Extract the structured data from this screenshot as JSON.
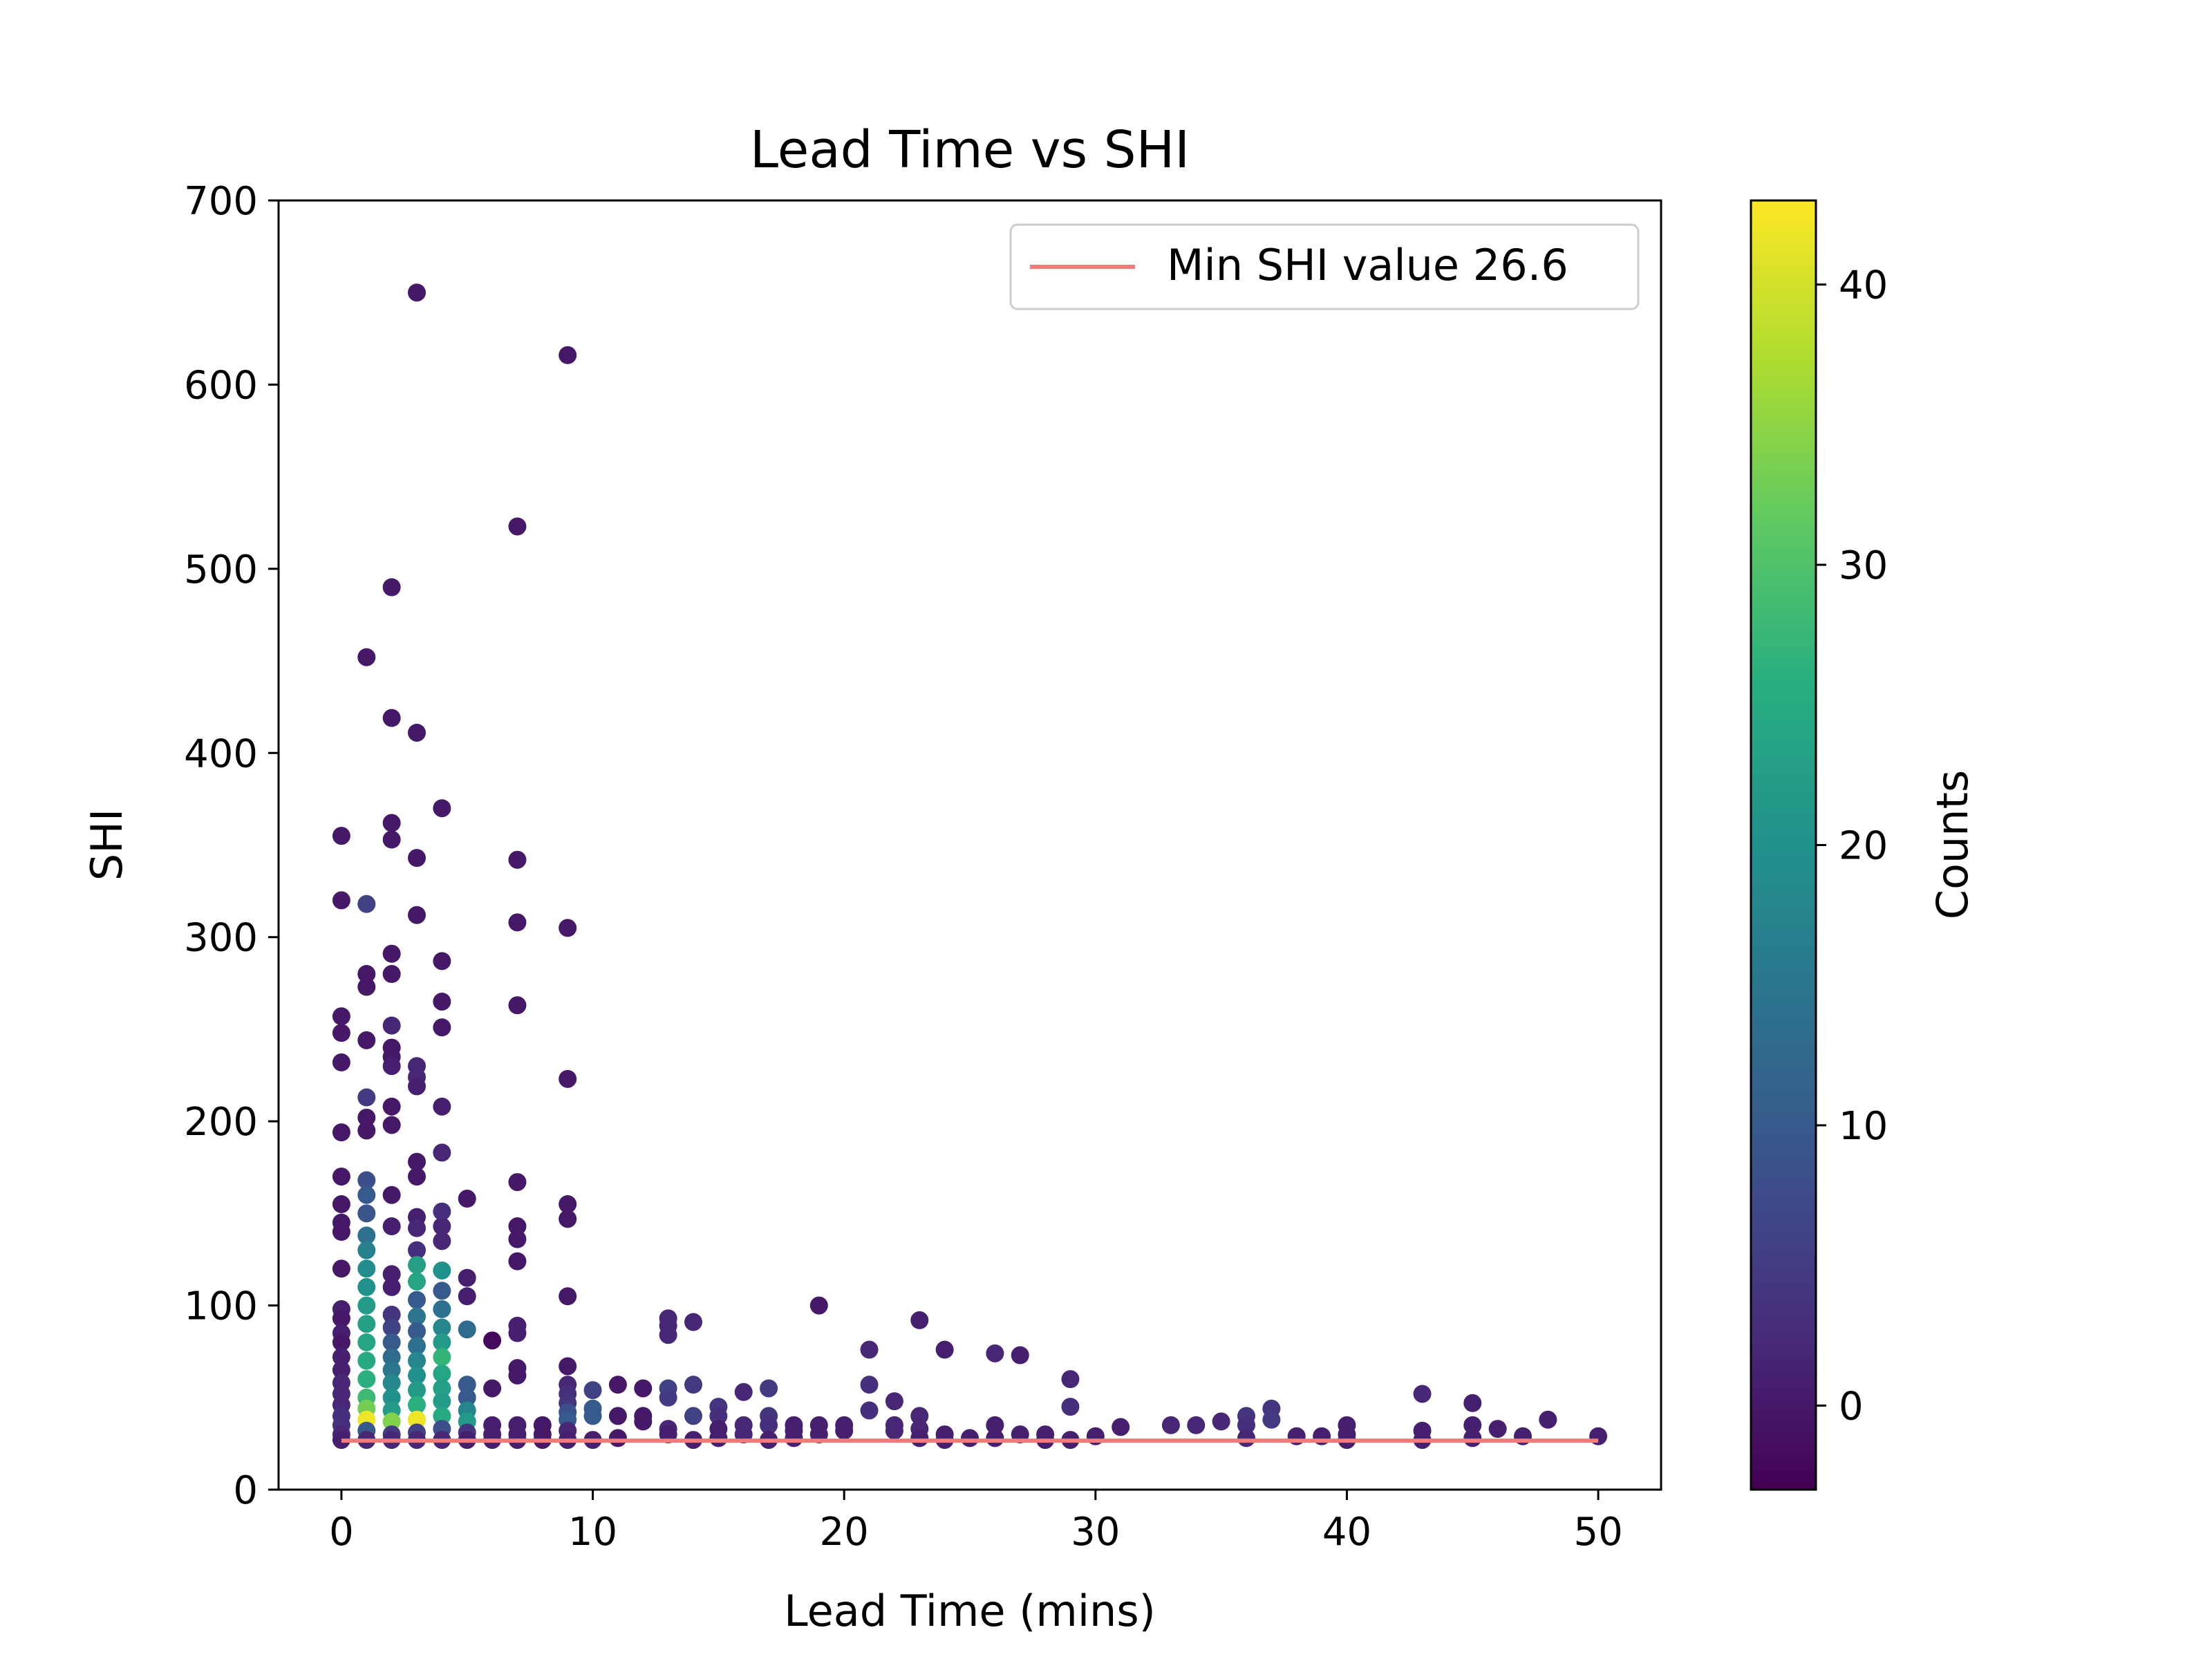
{
  "chart_data": {
    "type": "scatter",
    "title": "Lead Time vs SHI",
    "xlabel": "Lead Time (mins)",
    "ylabel": "SHI",
    "xlim": [
      -2.5,
      52.5
    ],
    "ylim": [
      0,
      700
    ],
    "xticks": [
      0,
      10,
      20,
      30,
      40,
      50
    ],
    "yticks": [
      0,
      100,
      200,
      300,
      400,
      500,
      600,
      700
    ],
    "grid": false,
    "legend": {
      "placement": "upper-right",
      "entries": [
        {
          "label": "Min SHI value 26.6",
          "color": "#f07b7b"
        }
      ]
    },
    "reference_line": {
      "y": 26.6,
      "x_range": [
        0,
        50
      ],
      "color": "#f07b7b"
    },
    "colorbar": {
      "label": "Counts",
      "range": [
        -3,
        43
      ],
      "ticks": [
        0,
        10,
        20,
        30,
        40
      ],
      "colormap": "viridis"
    },
    "points": [
      {
        "x": 0,
        "y": 355,
        "c": 0
      },
      {
        "x": 0,
        "y": 320,
        "c": 0
      },
      {
        "x": 0,
        "y": 257,
        "c": 0
      },
      {
        "x": 0,
        "y": 248,
        "c": 0
      },
      {
        "x": 0,
        "y": 232,
        "c": 0
      },
      {
        "x": 0,
        "y": 194,
        "c": 0
      },
      {
        "x": 0,
        "y": 170,
        "c": 0
      },
      {
        "x": 0,
        "y": 155,
        "c": 0
      },
      {
        "x": 0,
        "y": 145,
        "c": 0
      },
      {
        "x": 0,
        "y": 140,
        "c": 0
      },
      {
        "x": 0,
        "y": 120,
        "c": 0
      },
      {
        "x": 0,
        "y": 98,
        "c": 1
      },
      {
        "x": 0,
        "y": 93,
        "c": 0
      },
      {
        "x": 0,
        "y": 85,
        "c": 1
      },
      {
        "x": 0,
        "y": 80,
        "c": 0
      },
      {
        "x": 0,
        "y": 72,
        "c": 1
      },
      {
        "x": 0,
        "y": 65,
        "c": 1
      },
      {
        "x": 0,
        "y": 58,
        "c": 2
      },
      {
        "x": 0,
        "y": 52,
        "c": 2
      },
      {
        "x": 0,
        "y": 46,
        "c": 2
      },
      {
        "x": 0,
        "y": 40,
        "c": 3
      },
      {
        "x": 0,
        "y": 35,
        "c": 3
      },
      {
        "x": 0,
        "y": 30,
        "c": 2
      },
      {
        "x": 0,
        "y": 27,
        "c": 1
      },
      {
        "x": 1,
        "y": 452,
        "c": 0
      },
      {
        "x": 1,
        "y": 318,
        "c": 6
      },
      {
        "x": 1,
        "y": 280,
        "c": 0
      },
      {
        "x": 1,
        "y": 273,
        "c": 0
      },
      {
        "x": 1,
        "y": 244,
        "c": 0
      },
      {
        "x": 1,
        "y": 213,
        "c": 5
      },
      {
        "x": 1,
        "y": 202,
        "c": 0
      },
      {
        "x": 1,
        "y": 195,
        "c": 0
      },
      {
        "x": 1,
        "y": 168,
        "c": 8
      },
      {
        "x": 1,
        "y": 160,
        "c": 10
      },
      {
        "x": 1,
        "y": 150,
        "c": 9
      },
      {
        "x": 1,
        "y": 138,
        "c": 14
      },
      {
        "x": 1,
        "y": 130,
        "c": 17
      },
      {
        "x": 1,
        "y": 120,
        "c": 19
      },
      {
        "x": 1,
        "y": 110,
        "c": 20
      },
      {
        "x": 1,
        "y": 100,
        "c": 22
      },
      {
        "x": 1,
        "y": 90,
        "c": 23
      },
      {
        "x": 1,
        "y": 80,
        "c": 24
      },
      {
        "x": 1,
        "y": 70,
        "c": 25
      },
      {
        "x": 1,
        "y": 60,
        "c": 26
      },
      {
        "x": 1,
        "y": 50,
        "c": 28
      },
      {
        "x": 1,
        "y": 44,
        "c": 33
      },
      {
        "x": 1,
        "y": 38,
        "c": 42
      },
      {
        "x": 1,
        "y": 32,
        "c": 10
      },
      {
        "x": 1,
        "y": 27,
        "c": 2
      },
      {
        "x": 2,
        "y": 490,
        "c": 0
      },
      {
        "x": 2,
        "y": 419,
        "c": 0
      },
      {
        "x": 2,
        "y": 362,
        "c": 0
      },
      {
        "x": 2,
        "y": 353,
        "c": 0
      },
      {
        "x": 2,
        "y": 291,
        "c": 0
      },
      {
        "x": 2,
        "y": 280,
        "c": 0
      },
      {
        "x": 2,
        "y": 252,
        "c": 2
      },
      {
        "x": 2,
        "y": 240,
        "c": 0
      },
      {
        "x": 2,
        "y": 235,
        "c": 0
      },
      {
        "x": 2,
        "y": 230,
        "c": 1
      },
      {
        "x": 2,
        "y": 208,
        "c": 0
      },
      {
        "x": 2,
        "y": 198,
        "c": 0
      },
      {
        "x": 2,
        "y": 160,
        "c": 0
      },
      {
        "x": 2,
        "y": 143,
        "c": 1
      },
      {
        "x": 2,
        "y": 117,
        "c": 1
      },
      {
        "x": 2,
        "y": 110,
        "c": 1
      },
      {
        "x": 2,
        "y": 95,
        "c": 4
      },
      {
        "x": 2,
        "y": 88,
        "c": 6
      },
      {
        "x": 2,
        "y": 80,
        "c": 10
      },
      {
        "x": 2,
        "y": 72,
        "c": 13
      },
      {
        "x": 2,
        "y": 65,
        "c": 15
      },
      {
        "x": 2,
        "y": 58,
        "c": 18
      },
      {
        "x": 2,
        "y": 50,
        "c": 20
      },
      {
        "x": 2,
        "y": 43,
        "c": 22
      },
      {
        "x": 2,
        "y": 37,
        "c": 34
      },
      {
        "x": 2,
        "y": 30,
        "c": 5
      },
      {
        "x": 2,
        "y": 27,
        "c": 2
      },
      {
        "x": 3,
        "y": 650,
        "c": 0
      },
      {
        "x": 3,
        "y": 411,
        "c": 0
      },
      {
        "x": 3,
        "y": 343,
        "c": 0
      },
      {
        "x": 3,
        "y": 312,
        "c": 0
      },
      {
        "x": 3,
        "y": 230,
        "c": 2
      },
      {
        "x": 3,
        "y": 224,
        "c": 2
      },
      {
        "x": 3,
        "y": 219,
        "c": 1
      },
      {
        "x": 3,
        "y": 178,
        "c": 0
      },
      {
        "x": 3,
        "y": 170,
        "c": 0
      },
      {
        "x": 3,
        "y": 148,
        "c": 1
      },
      {
        "x": 3,
        "y": 142,
        "c": 2
      },
      {
        "x": 3,
        "y": 130,
        "c": 3
      },
      {
        "x": 3,
        "y": 122,
        "c": 23
      },
      {
        "x": 3,
        "y": 113,
        "c": 24
      },
      {
        "x": 3,
        "y": 103,
        "c": 10
      },
      {
        "x": 3,
        "y": 94,
        "c": 15
      },
      {
        "x": 3,
        "y": 86,
        "c": 10
      },
      {
        "x": 3,
        "y": 78,
        "c": 14
      },
      {
        "x": 3,
        "y": 70,
        "c": 18
      },
      {
        "x": 3,
        "y": 62,
        "c": 20
      },
      {
        "x": 3,
        "y": 54,
        "c": 22
      },
      {
        "x": 3,
        "y": 46,
        "c": 26
      },
      {
        "x": 3,
        "y": 38,
        "c": 42
      },
      {
        "x": 3,
        "y": 31,
        "c": 6
      },
      {
        "x": 3,
        "y": 27,
        "c": 2
      },
      {
        "x": 4,
        "y": 370,
        "c": 0
      },
      {
        "x": 4,
        "y": 287,
        "c": 0
      },
      {
        "x": 4,
        "y": 265,
        "c": 0
      },
      {
        "x": 4,
        "y": 251,
        "c": 0
      },
      {
        "x": 4,
        "y": 208,
        "c": 1
      },
      {
        "x": 4,
        "y": 183,
        "c": 2
      },
      {
        "x": 4,
        "y": 151,
        "c": 3
      },
      {
        "x": 4,
        "y": 143,
        "c": 2
      },
      {
        "x": 4,
        "y": 135,
        "c": 2
      },
      {
        "x": 4,
        "y": 119,
        "c": 20
      },
      {
        "x": 4,
        "y": 108,
        "c": 10
      },
      {
        "x": 4,
        "y": 98,
        "c": 14
      },
      {
        "x": 4,
        "y": 88,
        "c": 18
      },
      {
        "x": 4,
        "y": 80,
        "c": 22
      },
      {
        "x": 4,
        "y": 72,
        "c": 27
      },
      {
        "x": 4,
        "y": 63,
        "c": 24
      },
      {
        "x": 4,
        "y": 55,
        "c": 23
      },
      {
        "x": 4,
        "y": 48,
        "c": 22
      },
      {
        "x": 4,
        "y": 40,
        "c": 25
      },
      {
        "x": 4,
        "y": 33,
        "c": 8
      },
      {
        "x": 4,
        "y": 27,
        "c": 2
      },
      {
        "x": 5,
        "y": 158,
        "c": 0
      },
      {
        "x": 5,
        "y": 115,
        "c": 1
      },
      {
        "x": 5,
        "y": 105,
        "c": 1
      },
      {
        "x": 5,
        "y": 87,
        "c": 13
      },
      {
        "x": 5,
        "y": 57,
        "c": 10
      },
      {
        "x": 5,
        "y": 50,
        "c": 10
      },
      {
        "x": 5,
        "y": 43,
        "c": 18
      },
      {
        "x": 5,
        "y": 37,
        "c": 22
      },
      {
        "x": 5,
        "y": 31,
        "c": 4
      },
      {
        "x": 5,
        "y": 27,
        "c": 1
      },
      {
        "x": 6,
        "y": 81,
        "c": -2
      },
      {
        "x": 6,
        "y": 55,
        "c": 0
      },
      {
        "x": 6,
        "y": 35,
        "c": 1
      },
      {
        "x": 6,
        "y": 30,
        "c": 1
      },
      {
        "x": 6,
        "y": 27,
        "c": 1
      },
      {
        "x": 7,
        "y": 523,
        "c": 0
      },
      {
        "x": 7,
        "y": 342,
        "c": 0
      },
      {
        "x": 7,
        "y": 308,
        "c": 0
      },
      {
        "x": 7,
        "y": 263,
        "c": 0
      },
      {
        "x": 7,
        "y": 167,
        "c": 0
      },
      {
        "x": 7,
        "y": 143,
        "c": 0
      },
      {
        "x": 7,
        "y": 136,
        "c": 0
      },
      {
        "x": 7,
        "y": 124,
        "c": 0
      },
      {
        "x": 7,
        "y": 89,
        "c": 1
      },
      {
        "x": 7,
        "y": 85,
        "c": 1
      },
      {
        "x": 7,
        "y": 66,
        "c": 0
      },
      {
        "x": 7,
        "y": 62,
        "c": 0
      },
      {
        "x": 7,
        "y": 35,
        "c": 1
      },
      {
        "x": 7,
        "y": 30,
        "c": 1
      },
      {
        "x": 7,
        "y": 27,
        "c": 1
      },
      {
        "x": 8,
        "y": 35,
        "c": 0
      },
      {
        "x": 8,
        "y": 30,
        "c": 0
      },
      {
        "x": 8,
        "y": 27,
        "c": 0
      },
      {
        "x": 9,
        "y": 616,
        "c": 0
      },
      {
        "x": 9,
        "y": 305,
        "c": 0
      },
      {
        "x": 9,
        "y": 223,
        "c": 0
      },
      {
        "x": 9,
        "y": 155,
        "c": 0
      },
      {
        "x": 9,
        "y": 147,
        "c": 0
      },
      {
        "x": 9,
        "y": 105,
        "c": 0
      },
      {
        "x": 9,
        "y": 67,
        "c": 0
      },
      {
        "x": 9,
        "y": 57,
        "c": 2
      },
      {
        "x": 9,
        "y": 52,
        "c": 3
      },
      {
        "x": 9,
        "y": 47,
        "c": 4
      },
      {
        "x": 9,
        "y": 42,
        "c": 8
      },
      {
        "x": 9,
        "y": 38,
        "c": 10
      },
      {
        "x": 9,
        "y": 32,
        "c": 2
      },
      {
        "x": 9,
        "y": 27,
        "c": 1
      },
      {
        "x": 10,
        "y": 54,
        "c": 6
      },
      {
        "x": 10,
        "y": 44,
        "c": 10
      },
      {
        "x": 10,
        "y": 40,
        "c": 10
      },
      {
        "x": 10,
        "y": 27,
        "c": 1
      },
      {
        "x": 11,
        "y": 57,
        "c": 0
      },
      {
        "x": 11,
        "y": 40,
        "c": 0
      },
      {
        "x": 11,
        "y": 28,
        "c": 0
      },
      {
        "x": 12,
        "y": 55,
        "c": 0
      },
      {
        "x": 12,
        "y": 40,
        "c": 0
      },
      {
        "x": 12,
        "y": 37,
        "c": 0
      },
      {
        "x": 13,
        "y": 93,
        "c": 2
      },
      {
        "x": 13,
        "y": 89,
        "c": 2
      },
      {
        "x": 13,
        "y": 84,
        "c": 2
      },
      {
        "x": 13,
        "y": 55,
        "c": 6
      },
      {
        "x": 13,
        "y": 50,
        "c": 5
      },
      {
        "x": 13,
        "y": 33,
        "c": 2
      },
      {
        "x": 13,
        "y": 30,
        "c": 1
      },
      {
        "x": 14,
        "y": 91,
        "c": 2
      },
      {
        "x": 14,
        "y": 57,
        "c": 5
      },
      {
        "x": 14,
        "y": 40,
        "c": 6
      },
      {
        "x": 14,
        "y": 27,
        "c": 1
      },
      {
        "x": 15,
        "y": 45,
        "c": 4
      },
      {
        "x": 15,
        "y": 40,
        "c": 3
      },
      {
        "x": 15,
        "y": 33,
        "c": 1
      },
      {
        "x": 15,
        "y": 28,
        "c": 1
      },
      {
        "x": 16,
        "y": 53,
        "c": 2
      },
      {
        "x": 16,
        "y": 35,
        "c": 2
      },
      {
        "x": 16,
        "y": 30,
        "c": 2
      },
      {
        "x": 17,
        "y": 55,
        "c": 5
      },
      {
        "x": 17,
        "y": 40,
        "c": 4
      },
      {
        "x": 17,
        "y": 35,
        "c": 3
      },
      {
        "x": 17,
        "y": 27,
        "c": 1
      },
      {
        "x": 18,
        "y": 35,
        "c": 1
      },
      {
        "x": 18,
        "y": 32,
        "c": 1
      },
      {
        "x": 18,
        "y": 28,
        "c": 1
      },
      {
        "x": 19,
        "y": 100,
        "c": 0
      },
      {
        "x": 19,
        "y": 35,
        "c": 1
      },
      {
        "x": 19,
        "y": 30,
        "c": 1
      },
      {
        "x": 20,
        "y": 35,
        "c": 1
      },
      {
        "x": 20,
        "y": 32,
        "c": 1
      },
      {
        "x": 21,
        "y": 76,
        "c": 2
      },
      {
        "x": 21,
        "y": 57,
        "c": 3
      },
      {
        "x": 21,
        "y": 43,
        "c": 3
      },
      {
        "x": 22,
        "y": 48,
        "c": 2
      },
      {
        "x": 22,
        "y": 35,
        "c": 2
      },
      {
        "x": 22,
        "y": 32,
        "c": 2
      },
      {
        "x": 23,
        "y": 92,
        "c": 1
      },
      {
        "x": 23,
        "y": 40,
        "c": 2
      },
      {
        "x": 23,
        "y": 33,
        "c": 2
      },
      {
        "x": 23,
        "y": 28,
        "c": 1
      },
      {
        "x": 24,
        "y": 76,
        "c": 1
      },
      {
        "x": 24,
        "y": 30,
        "c": 1
      },
      {
        "x": 24,
        "y": 27,
        "c": 1
      },
      {
        "x": 25,
        "y": 28,
        "c": 1
      },
      {
        "x": 26,
        "y": 74,
        "c": 2
      },
      {
        "x": 26,
        "y": 35,
        "c": 1
      },
      {
        "x": 26,
        "y": 28,
        "c": 1
      },
      {
        "x": 27,
        "y": 73,
        "c": 1
      },
      {
        "x": 27,
        "y": 30,
        "c": 1
      },
      {
        "x": 28,
        "y": 30,
        "c": 1
      },
      {
        "x": 28,
        "y": 27,
        "c": 1
      },
      {
        "x": 29,
        "y": 60,
        "c": 2
      },
      {
        "x": 29,
        "y": 45,
        "c": 3
      },
      {
        "x": 29,
        "y": 27,
        "c": 1
      },
      {
        "x": 30,
        "y": 29,
        "c": 1
      },
      {
        "x": 31,
        "y": 34,
        "c": 1
      },
      {
        "x": 33,
        "y": 35,
        "c": 2
      },
      {
        "x": 34,
        "y": 35,
        "c": 2
      },
      {
        "x": 35,
        "y": 37,
        "c": 2
      },
      {
        "x": 36,
        "y": 40,
        "c": 4
      },
      {
        "x": 36,
        "y": 35,
        "c": 3
      },
      {
        "x": 36,
        "y": 28,
        "c": 2
      },
      {
        "x": 37,
        "y": 44,
        "c": 4
      },
      {
        "x": 37,
        "y": 38,
        "c": 5
      },
      {
        "x": 38,
        "y": 29,
        "c": 1
      },
      {
        "x": 39,
        "y": 29,
        "c": 1
      },
      {
        "x": 40,
        "y": 35,
        "c": 1
      },
      {
        "x": 40,
        "y": 30,
        "c": 1
      },
      {
        "x": 40,
        "y": 27,
        "c": 1
      },
      {
        "x": 43,
        "y": 52,
        "c": 2
      },
      {
        "x": 43,
        "y": 32,
        "c": 1
      },
      {
        "x": 43,
        "y": 27,
        "c": 1
      },
      {
        "x": 45,
        "y": 47,
        "c": 1
      },
      {
        "x": 45,
        "y": 35,
        "c": 1
      },
      {
        "x": 45,
        "y": 28,
        "c": 1
      },
      {
        "x": 46,
        "y": 33,
        "c": 1
      },
      {
        "x": 47,
        "y": 29,
        "c": 1
      },
      {
        "x": 48,
        "y": 38,
        "c": 1
      },
      {
        "x": 50,
        "y": 29,
        "c": 1
      }
    ]
  }
}
